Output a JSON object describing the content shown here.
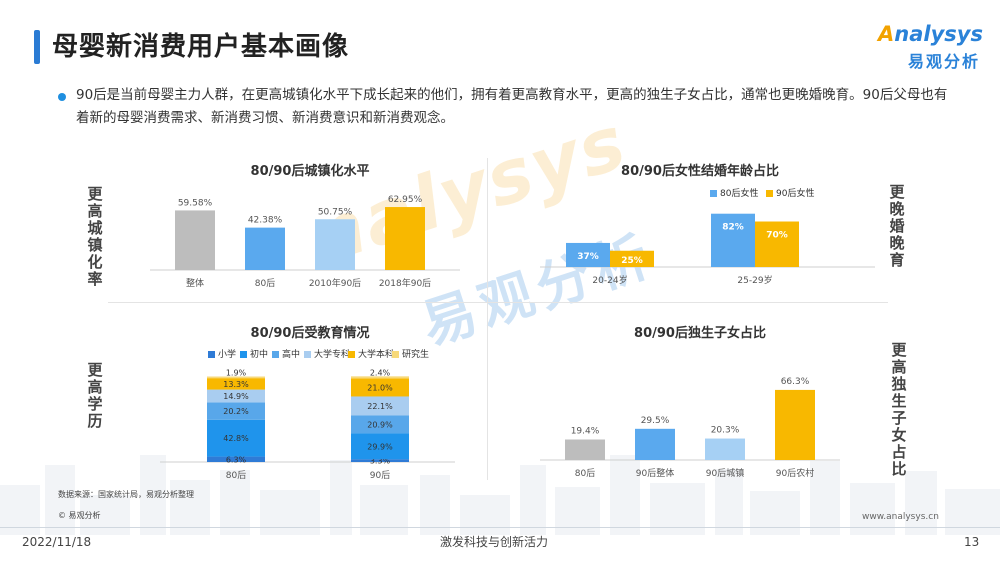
{
  "header": {
    "title": "母婴新消费用户基本画像",
    "logo_en": "nalysys",
    "logo_en_prefix": "A",
    "logo_cn": "易观分析"
  },
  "intro": "90后是当前母婴主力人群，在更高城镇化水平下成长起来的他们，拥有着更高教育水平，更高的独生子女占比，通常也更晚婚晚育。90后父母也有着新的母婴消费需求、新消费习惯、新消费意识和新消费观念。",
  "side_labels": {
    "urban": "更高城镇化率",
    "marriage": "更晚婚晚育",
    "education": "更高学历",
    "only_child": "更高独生子女占比"
  },
  "watermark": {
    "en": "nalysys",
    "cn": "易观分析"
  },
  "colors": {
    "gray": "#bdbdbd",
    "blue": "#5aa9ee",
    "lightblue": "#a6d0f4",
    "orange": "#f8b800",
    "edu_primary": "#2f7bd6",
    "edu_junior": "#1f94ec",
    "edu_senior": "#58a7ea",
    "edu_college": "#a9cdf0",
    "edu_bachelor": "#f8b800",
    "edu_graduate": "#f7d97a"
  },
  "chart_data": [
    {
      "id": "urban",
      "type": "bar",
      "title": "80/90后城镇化水平",
      "categories": [
        "整体",
        "80后",
        "2010年90后",
        "2018年90后"
      ],
      "values": [
        59.58,
        42.38,
        50.75,
        62.95
      ],
      "labels": [
        "59.58%",
        "42.38%",
        "50.75%",
        "62.95%"
      ],
      "ylim": [
        0,
        70
      ]
    },
    {
      "id": "marriage",
      "type": "bar",
      "title": "80/90后女性结婚年龄占比",
      "categories": [
        "20-24岁",
        "25-29岁"
      ],
      "series": [
        {
          "name": "80后女性",
          "values": [
            37,
            82
          ],
          "labels": [
            "37%",
            "82%"
          ]
        },
        {
          "name": "90后女性",
          "values": [
            25,
            70
          ],
          "labels": [
            "25%",
            "70%"
          ]
        }
      ],
      "ylim": [
        0,
        100
      ],
      "legend": "top-right"
    },
    {
      "id": "education",
      "type": "bar",
      "stacked": true,
      "title": "80/90后受教育情况",
      "categories": [
        "80后",
        "90后"
      ],
      "series": [
        {
          "name": "小学",
          "values": [
            6.3,
            3.3
          ],
          "labels": [
            "6.3%",
            "3.3%"
          ]
        },
        {
          "name": "初中",
          "values": [
            42.8,
            29.9
          ],
          "labels": [
            "42.8%",
            "29.9%"
          ]
        },
        {
          "name": "高中",
          "values": [
            20.2,
            20.9
          ],
          "labels": [
            "20.2%",
            "20.9%"
          ]
        },
        {
          "name": "大学专科",
          "values": [
            14.9,
            22.1
          ],
          "labels": [
            "14.9%",
            "22.1%"
          ]
        },
        {
          "name": "大学本科",
          "values": [
            13.3,
            21.0
          ],
          "labels": [
            "13.3%",
            "21.0%"
          ]
        },
        {
          "name": "研究生",
          "values": [
            1.9,
            2.4
          ],
          "labels": [
            "1.9%",
            "2.4%"
          ]
        }
      ],
      "ylim": [
        0,
        100
      ],
      "legend": "top"
    },
    {
      "id": "only_child",
      "type": "bar",
      "title": "80/90后独生子女占比",
      "categories": [
        "80后",
        "90后整体",
        "90后城镇",
        "90后农村"
      ],
      "values": [
        19.4,
        29.5,
        20.3,
        66.3
      ],
      "labels": [
        "19.4%",
        "29.5%",
        "20.3%",
        "66.3%"
      ],
      "ylim": [
        0,
        70
      ]
    }
  ],
  "footer": {
    "source": "数据来源：国家统计局，易观分析整理",
    "copyright": "© 易观分析",
    "website": "www.analysys.cn",
    "date": "2022/11/18",
    "slogan": "激发科技与创新活力",
    "page": "13"
  }
}
